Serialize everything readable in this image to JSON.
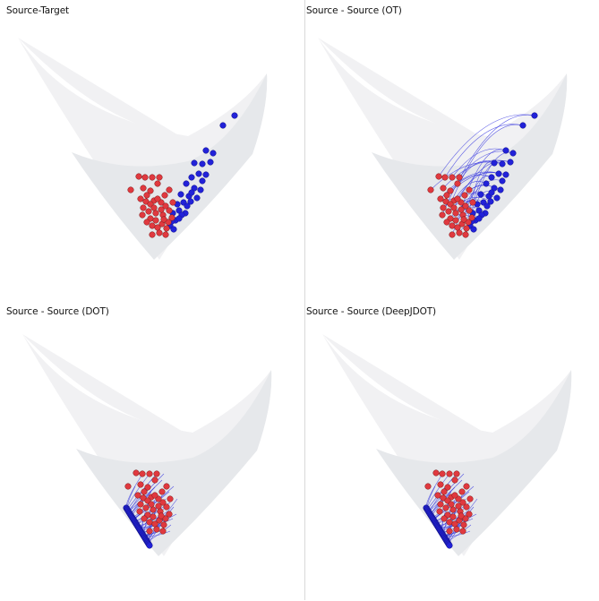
{
  "panels": [
    {
      "title": "Source-Target",
      "mode": "plain"
    },
    {
      "title": "Source - Source (OT)",
      "mode": "ot"
    },
    {
      "title": "Source - Source (DOT)",
      "mode": "dot"
    },
    {
      "title": "Source - Source (DeepJDOT)",
      "mode": "deepjdot"
    }
  ],
  "colors": {
    "source": "#e0393f",
    "target": "#2222d8",
    "link": "#3535e0",
    "surface_back": "#f1f1f3",
    "surface_front": "#e6e8eb"
  },
  "chart_data": [
    {
      "type": "scatter",
      "title": "Source-Target",
      "series": [
        {
          "values": [
            [
              155,
              197
            ],
            [
              162,
              198
            ],
            [
              170,
              198
            ],
            [
              178,
              198
            ],
            [
              176,
              205
            ],
            [
              146,
              212
            ],
            [
              160,
              210
            ],
            [
              168,
              213
            ],
            [
              157,
              222
            ],
            [
              164,
              218
            ],
            [
              172,
              224
            ],
            [
              184,
              218
            ],
            [
              189,
              212
            ],
            [
              185,
              230
            ],
            [
              160,
              232
            ],
            [
              166,
              236
            ],
            [
              174,
              238
            ],
            [
              180,
              226
            ],
            [
              182,
              240
            ],
            [
              188,
              248
            ],
            [
              192,
              243
            ],
            [
              168,
              244
            ],
            [
              170,
              252
            ],
            [
              176,
              254
            ],
            [
              178,
              260
            ],
            [
              185,
              262
            ],
            [
              170,
              262
            ],
            [
              164,
              248
            ],
            [
              174,
              246
            ],
            [
              181,
              250
            ],
            [
              163,
              225
            ],
            [
              159,
              240
            ],
            [
              168,
              228
            ],
            [
              180,
              234
            ],
            [
              186,
              255
            ],
            [
              189,
              235
            ],
            [
              193,
              226
            ],
            [
              172,
              232
            ],
            [
              183,
              245
            ],
            [
              176,
              222
            ]
          ]
        },
        {
          "values": [
            [
              262,
              129
            ],
            [
              249,
              140
            ],
            [
              230,
              168
            ],
            [
              238,
              171
            ],
            [
              217,
              182
            ],
            [
              226,
              183
            ],
            [
              235,
              181
            ],
            [
              214,
              198
            ],
            [
              222,
              194
            ],
            [
              230,
              195
            ],
            [
              208,
              205
            ],
            [
              217,
              210
            ],
            [
              224,
              212
            ],
            [
              202,
              217
            ],
            [
              211,
              219
            ],
            [
              198,
              228
            ],
            [
              205,
              226
            ],
            [
              213,
              225
            ],
            [
              200,
              235
            ],
            [
              207,
              238
            ],
            [
              193,
              238
            ],
            [
              196,
              246
            ],
            [
              203,
              240
            ],
            [
              190,
              252
            ],
            [
              194,
              256
            ],
            [
              214,
              215
            ],
            [
              226,
              202
            ],
            [
              220,
              221
            ],
            [
              209,
              230
            ],
            [
              200,
              244
            ],
            [
              192,
              247
            ]
          ]
        }
      ]
    }
  ]
}
